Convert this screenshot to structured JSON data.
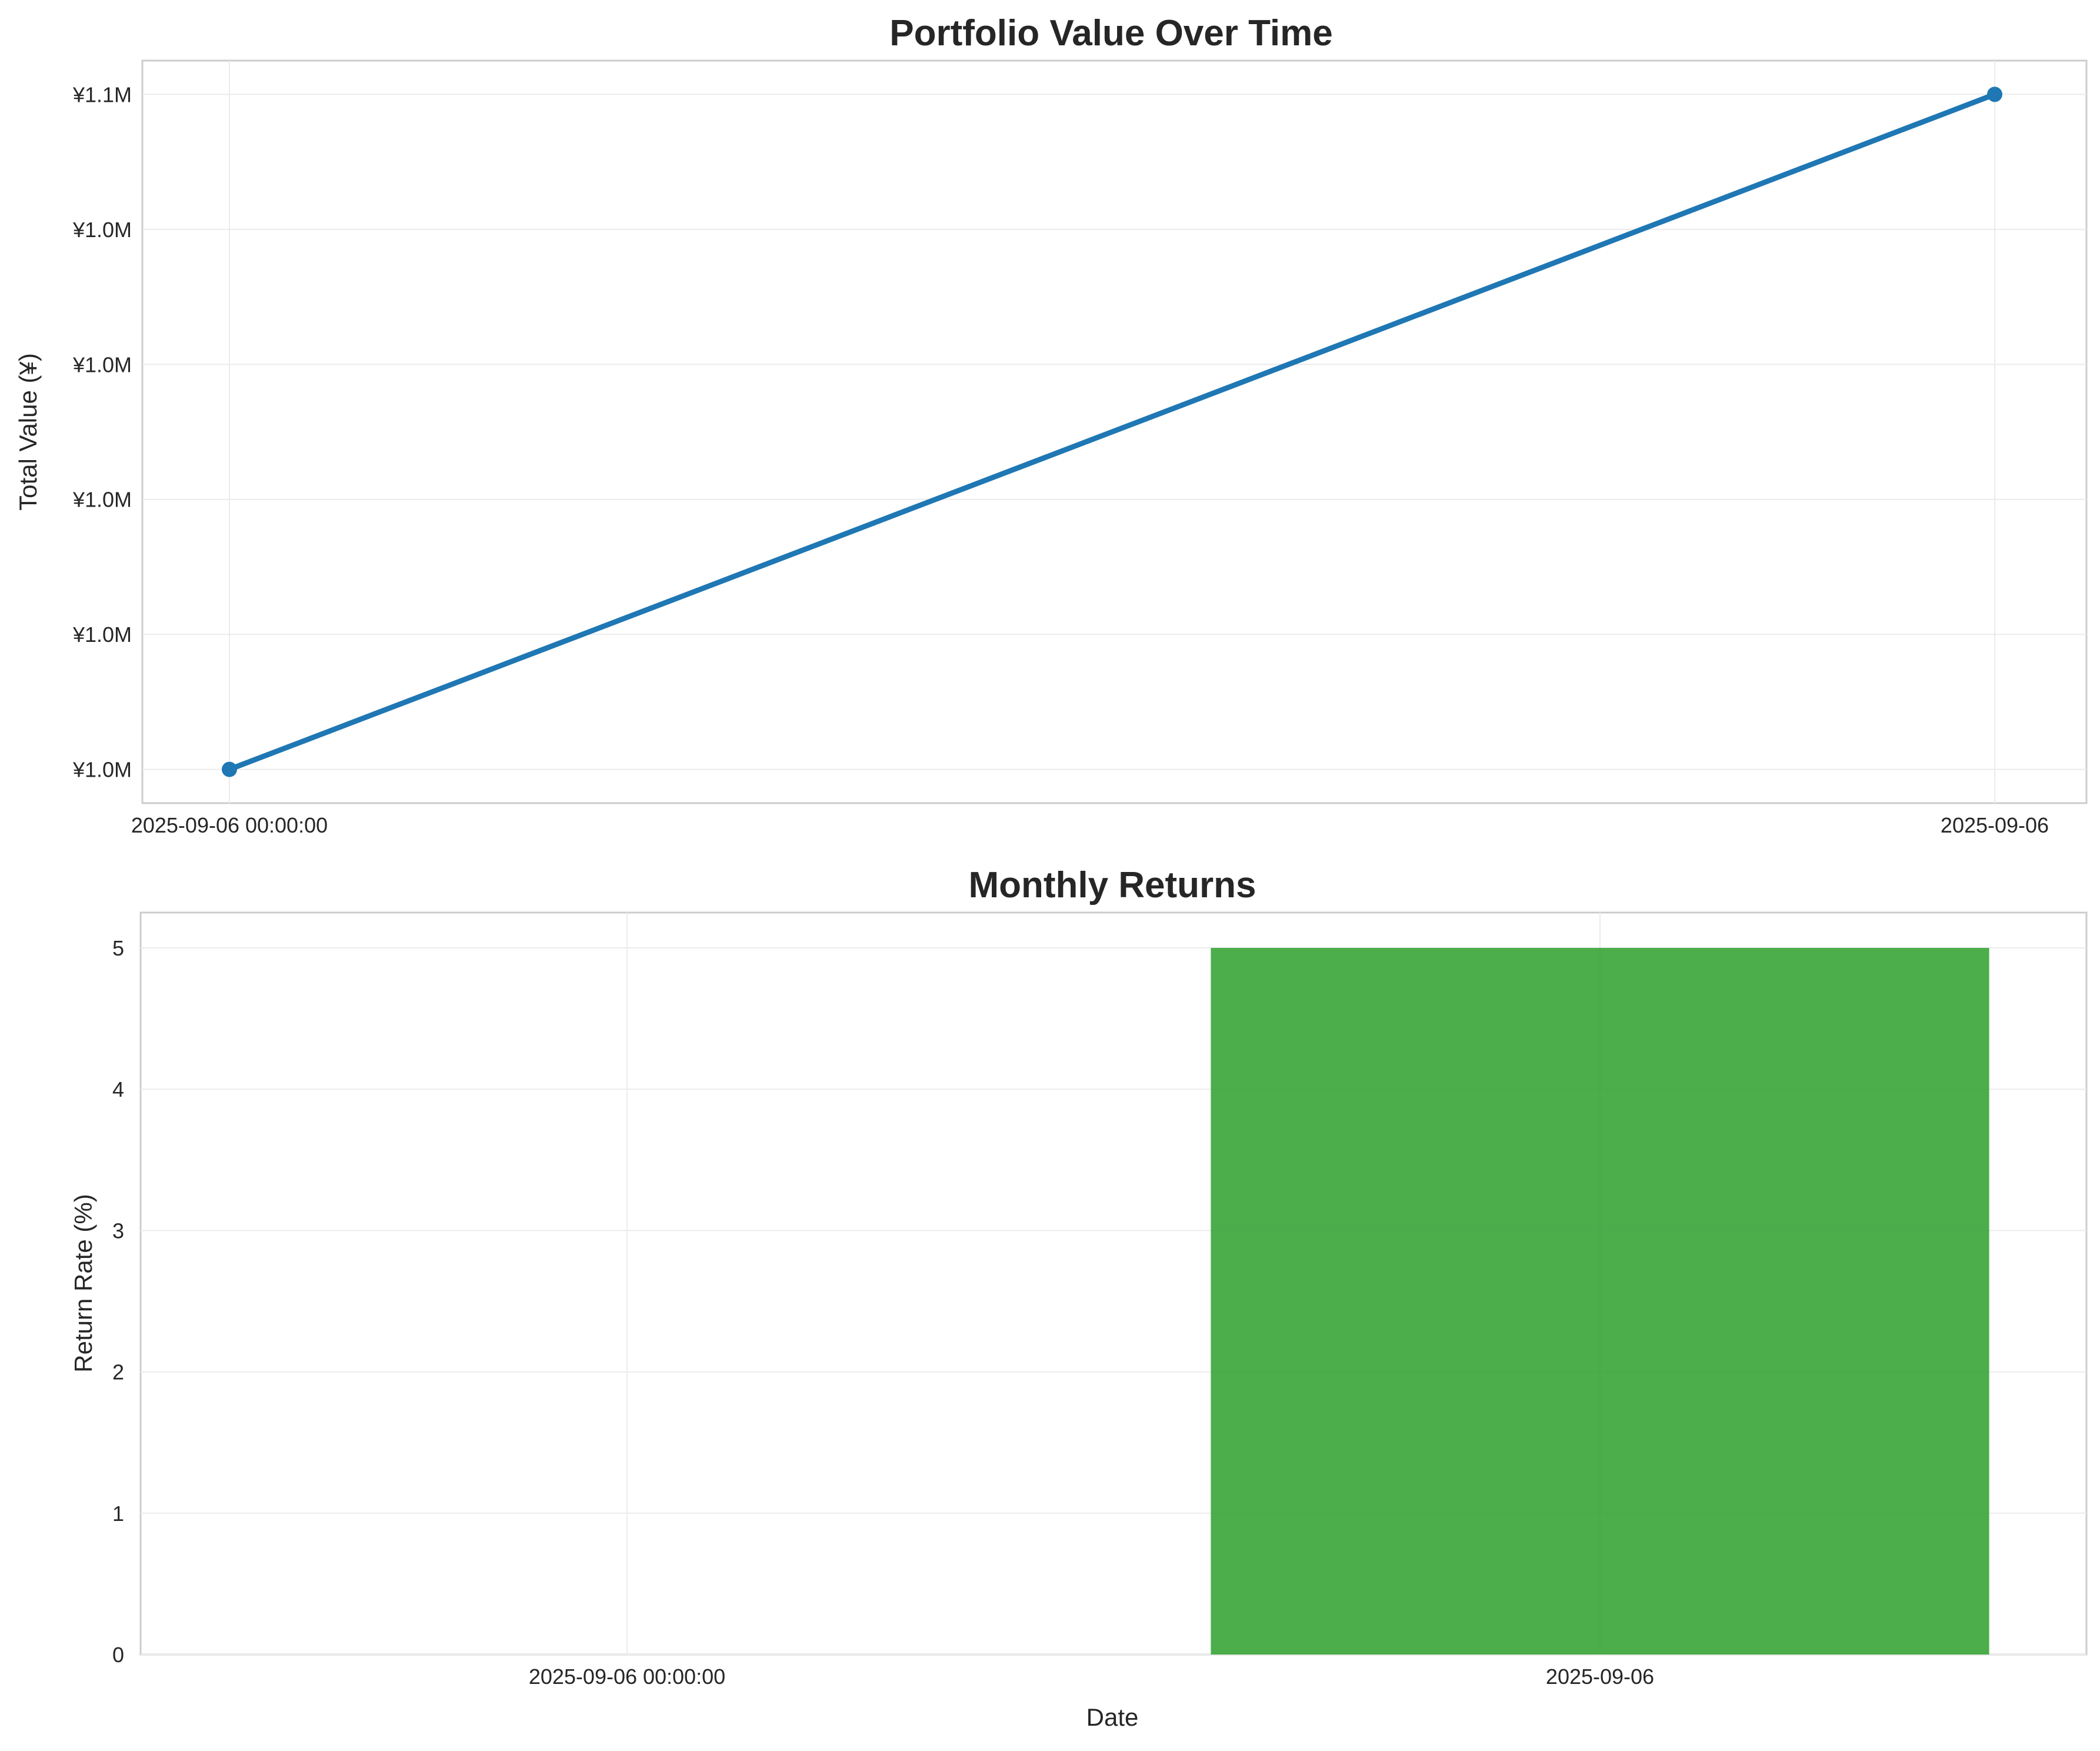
{
  "chart_data": [
    {
      "type": "line",
      "title": "Portfolio Value Over Time",
      "xlabel": "",
      "ylabel": "Total Value (¥)",
      "x_tick_labels": [
        "2025-09-06 00:00:00",
        "2025-09-06"
      ],
      "y_tick_labels": [
        "¥1.0M",
        "¥1.0M",
        "¥1.0M",
        "¥1.0M",
        "¥1.0M",
        "¥1.1M"
      ],
      "y_ticks": [
        1000000,
        1010000,
        1020000,
        1030000,
        1040000,
        1050000
      ],
      "ylim": [
        997500,
        1052500
      ],
      "series": [
        {
          "values": [
            1000000,
            1050000
          ]
        }
      ],
      "grid": true,
      "color": "#1f77b4"
    },
    {
      "type": "bar",
      "title": "Monthly Returns",
      "xlabel": "Date",
      "ylabel": "Return Rate (%)",
      "categories": [
        "2025-09-06 00:00:00",
        "2025-09-06"
      ],
      "values": [
        0,
        5
      ],
      "y_ticks": [
        0,
        1,
        2,
        3,
        4,
        5
      ],
      "ylim": [
        0,
        5.25
      ],
      "grid": true,
      "color": "#2ca02c"
    }
  ]
}
